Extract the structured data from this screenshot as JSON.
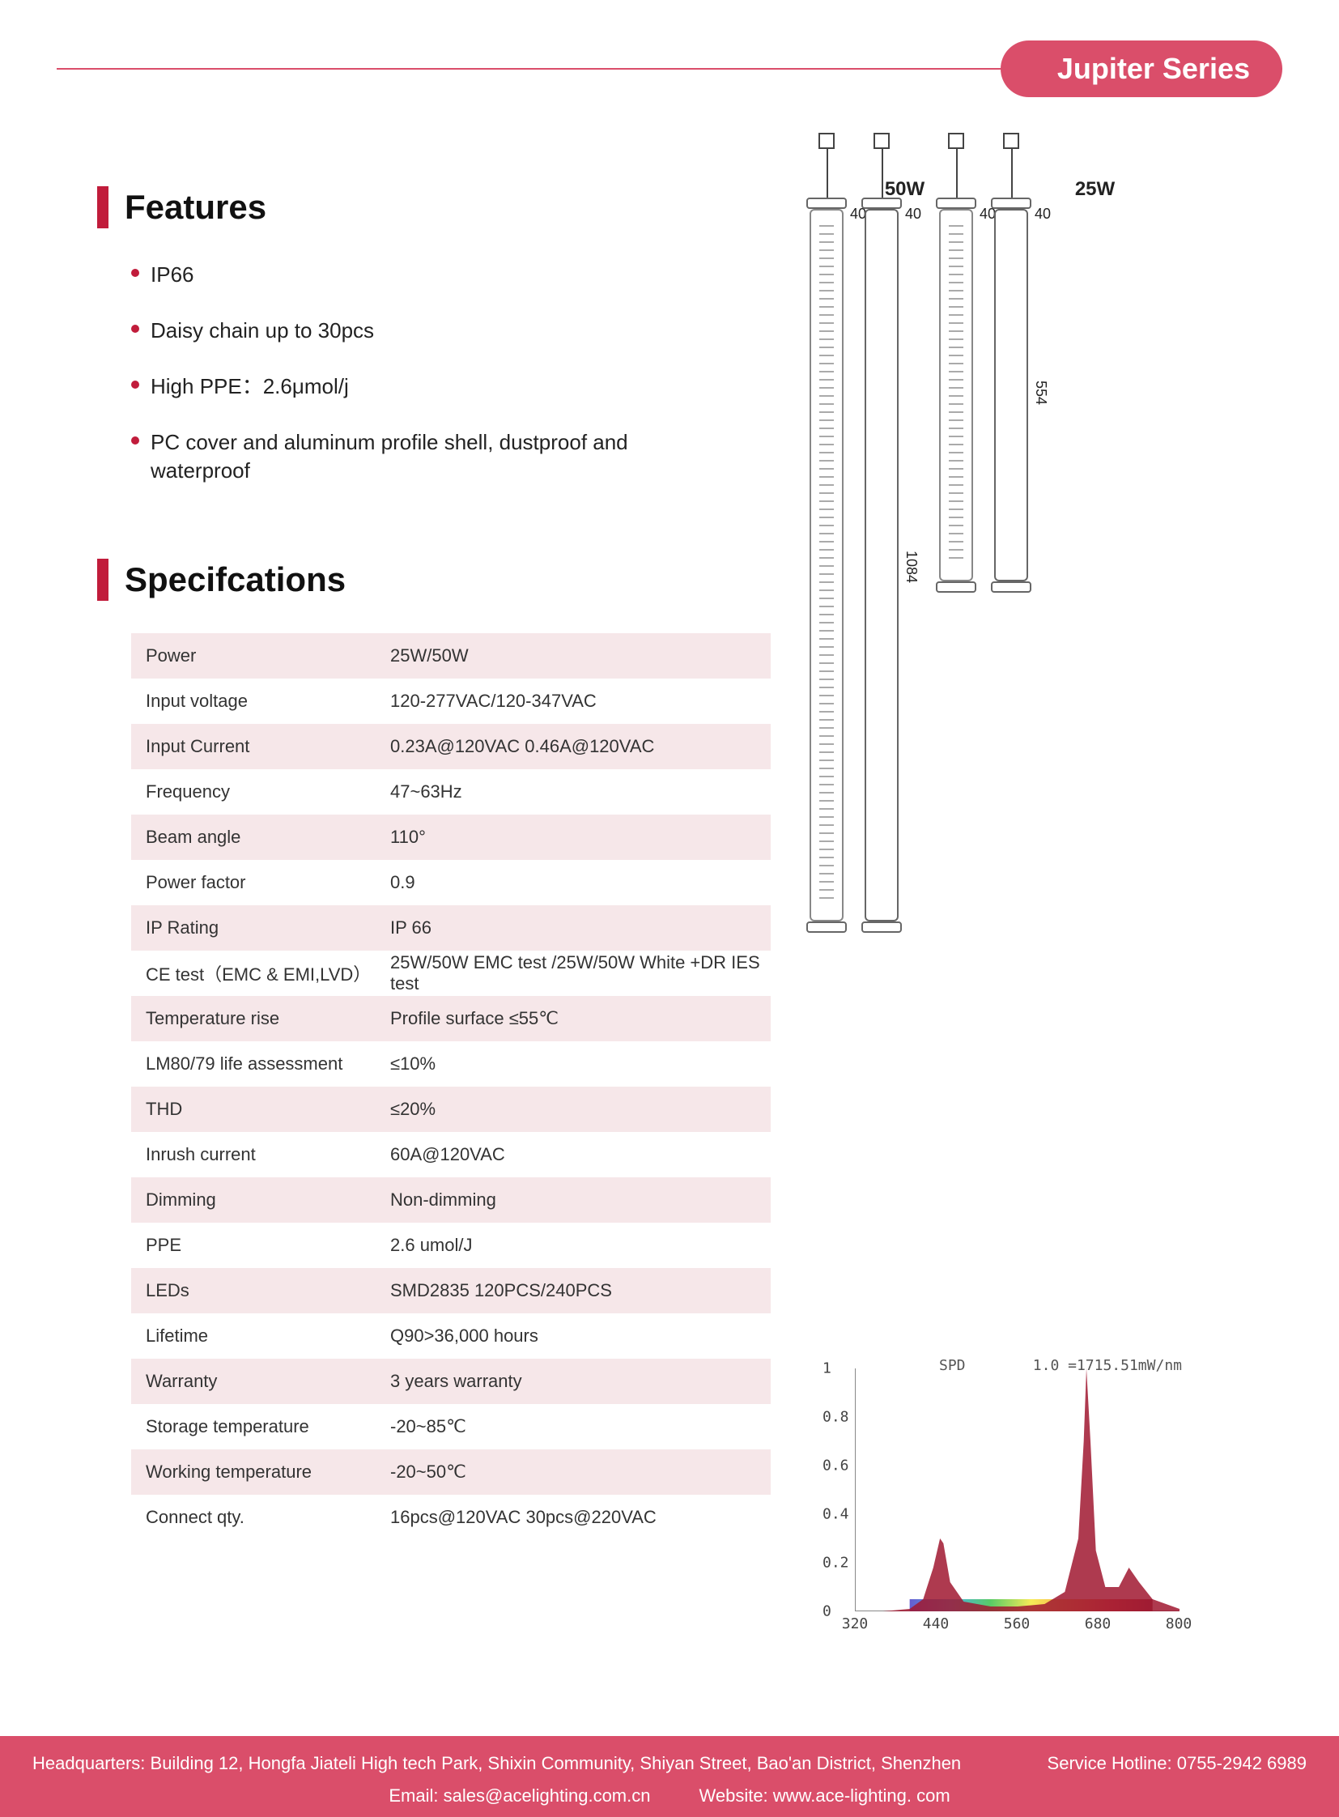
{
  "header": {
    "series_label": "Jupiter Series",
    "accent_color": "#da4e6a",
    "bar_color": "#c11c3b"
  },
  "features": {
    "heading": "Features",
    "items": [
      "IP66",
      "Daisy chain up to 30pcs",
      "High PPE：2.6μmol/j",
      "PC cover and aluminum profile shell, dustproof and waterproof"
    ]
  },
  "specs": {
    "heading": "Specifcations",
    "row_alt_bg": "#f6e7e9",
    "rows": [
      {
        "label": "Power",
        "value": "25W/50W"
      },
      {
        "label": "Input voltage",
        "value": "120-277VAC/120-347VAC"
      },
      {
        "label": "Input Current",
        "value": "0.23A@120VAC 0.46A@120VAC"
      },
      {
        "label": "Frequency",
        "value": "47~63Hz"
      },
      {
        "label": "Beam angle",
        "value": "110°"
      },
      {
        "label": "Power factor",
        "value": "0.9"
      },
      {
        "label": "IP Rating",
        "value": "IP 66"
      },
      {
        "label": "CE test（EMC & EMI,LVD）",
        "value": "25W/50W EMC test /25W/50W White +DR IES test"
      },
      {
        "label": "Temperature rise",
        "value": "Profile surface ≤55℃"
      },
      {
        "label": "LM80/79 life assessment",
        "value": "≤10%"
      },
      {
        "label": "THD",
        "value": "≤20%"
      },
      {
        "label": "Inrush current",
        "value": "60A@120VAC"
      },
      {
        "label": "Dimming",
        "value": " Non-dimming"
      },
      {
        "label": "PPE",
        "value": "2.6 umol/J"
      },
      {
        "label": "LEDs",
        "value": "SMD2835 120PCS/240PCS"
      },
      {
        "label": "Lifetime",
        "value": "Q90>36,000 hours"
      },
      {
        "label": "Warranty",
        "value": "3 years warranty"
      },
      {
        "label": "Storage temperature",
        "value": "-20~85℃"
      },
      {
        "label": "Working temperature",
        "value": "-20~50℃"
      },
      {
        "label": "Connect qty.",
        "value": "16pcs@120VAC 30pcs@220VAC"
      }
    ]
  },
  "diagram": {
    "variant_labels": [
      "50W",
      "25W"
    ],
    "width_label": "40",
    "length_50w": "1084",
    "length_25w": "554"
  },
  "spd": {
    "title": "SPD",
    "scale_label": "1.0 =1715.51mW/nm",
    "xlim": [
      320,
      800
    ],
    "xticks": [
      320,
      440,
      560,
      680,
      800
    ],
    "ylim": [
      0,
      1
    ],
    "yticks": [
      0,
      0.2,
      0.4,
      0.6,
      0.8,
      1
    ],
    "background_color": "#ffffff",
    "axis_color": "#888888",
    "font": "monospace",
    "fontsize": 18,
    "curve_fill": "#a01830",
    "rainbow_y": 0.02,
    "rainbow_colors": [
      "#4b3fc7",
      "#2aa8e0",
      "#3cc14a",
      "#f5e83a",
      "#f59b2a",
      "#e0402a",
      "#8a1020"
    ],
    "series": {
      "type": "area",
      "points": [
        [
          320,
          0.0
        ],
        [
          360,
          0.0
        ],
        [
          400,
          0.01
        ],
        [
          420,
          0.05
        ],
        [
          435,
          0.18
        ],
        [
          445,
          0.3
        ],
        [
          450,
          0.28
        ],
        [
          460,
          0.12
        ],
        [
          480,
          0.04
        ],
        [
          520,
          0.02
        ],
        [
          560,
          0.02
        ],
        [
          600,
          0.03
        ],
        [
          630,
          0.08
        ],
        [
          650,
          0.3
        ],
        [
          658,
          0.7
        ],
        [
          662,
          1.0
        ],
        [
          668,
          0.7
        ],
        [
          676,
          0.25
        ],
        [
          690,
          0.1
        ],
        [
          710,
          0.1
        ],
        [
          725,
          0.18
        ],
        [
          740,
          0.12
        ],
        [
          760,
          0.05
        ],
        [
          800,
          0.01
        ]
      ]
    }
  },
  "footer": {
    "bg_color": "#da4e6a",
    "hq": "Headquarters: Building 12, Hongfa Jiateli High tech Park, Shixin Community, Shiyan Street, Bao'an District, Shenzhen",
    "hotline": "Service Hotline: 0755-2942 6989",
    "email": "Email: sales@acelighting.com.cn",
    "website": "Website: www.ace-lighting. com"
  }
}
